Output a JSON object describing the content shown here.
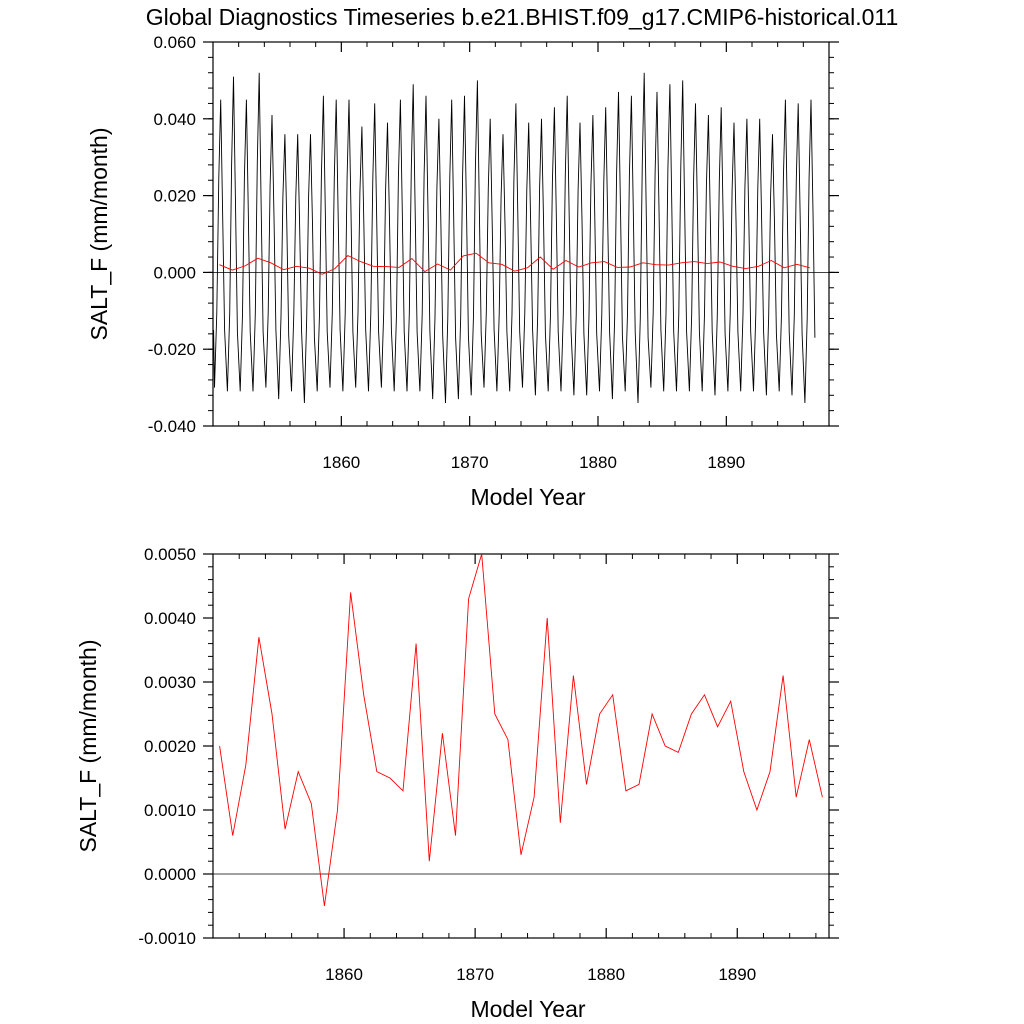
{
  "title": "Global Diagnostics Timeseries b.e21.BHIST.f09_g17.CMIP6-historical.011",
  "colors": {
    "monthly": "#000000",
    "annual": "#ff0000",
    "zero_line": "#000000"
  },
  "chart_data": [
    {
      "type": "line",
      "xlabel": "Model Year",
      "ylabel": "SALT_F (mm/month)",
      "xlim": [
        1850,
        1898
      ],
      "ylim": [
        -0.04,
        0.06
      ],
      "x_ticks": [
        1860,
        1870,
        1880,
        1890
      ],
      "x_tick_labels": [
        "1860",
        "1870",
        "1880",
        "1890"
      ],
      "y_ticks": [
        -0.04,
        -0.02,
        0,
        0.02,
        0.04,
        0.06
      ],
      "y_tick_labels": [
        "-0.040",
        "-0.020",
        "0.000",
        "0.020",
        "0.040",
        "0.060"
      ],
      "grid": false,
      "zero_line": true,
      "series": [
        {
          "color": "#000000",
          "style": "monthly seasonal oscillation",
          "year_start": 1850,
          "peaks": [
            0.045,
            0.051,
            0.045,
            0.052,
            0.041,
            0.036,
            0.036,
            0.036,
            0.046,
            0.045,
            0.045,
            0.038,
            0.044,
            0.039,
            0.045,
            0.049,
            0.046,
            0.04,
            0.045,
            0.046,
            0.05,
            0.04,
            0.036,
            0.044,
            0.039,
            0.04,
            0.043,
            0.046,
            0.039,
            0.041,
            0.043,
            0.047,
            0.046,
            0.052,
            0.047,
            0.049,
            0.05,
            0.044,
            0.041,
            0.043,
            0.039,
            0.04,
            0.04,
            0.036,
            0.045,
            0.044,
            0.045
          ],
          "troughs": [
            -0.03,
            -0.031,
            -0.031,
            -0.031,
            -0.03,
            -0.033,
            -0.031,
            -0.034,
            -0.031,
            -0.03,
            -0.031,
            -0.03,
            -0.031,
            -0.03,
            -0.031,
            -0.031,
            -0.031,
            -0.033,
            -0.034,
            -0.033,
            -0.032,
            -0.03,
            -0.031,
            -0.031,
            -0.03,
            -0.032,
            -0.031,
            -0.031,
            -0.032,
            -0.032,
            -0.031,
            -0.033,
            -0.031,
            -0.034,
            -0.03,
            -0.031,
            -0.031,
            -0.031,
            -0.031,
            -0.032,
            -0.031,
            -0.031,
            -0.031,
            -0.032,
            -0.031,
            -0.032,
            -0.034
          ]
        },
        {
          "color": "#ff0000",
          "style": "annual mean",
          "x": [
            1850.5,
            1851.5,
            1852.5,
            1853.5,
            1854.5,
            1855.5,
            1856.5,
            1857.5,
            1858.5,
            1859.5,
            1860.5,
            1861.5,
            1862.5,
            1863.5,
            1864.5,
            1865.5,
            1866.5,
            1867.5,
            1868.5,
            1869.5,
            1870.5,
            1871.5,
            1872.5,
            1873.5,
            1874.5,
            1875.5,
            1876.5,
            1877.5,
            1878.5,
            1879.5,
            1880.5,
            1881.5,
            1882.5,
            1883.5,
            1884.5,
            1885.5,
            1886.5,
            1887.5,
            1888.5,
            1889.5,
            1890.5,
            1891.5,
            1892.5,
            1893.5,
            1894.5,
            1895.5,
            1896.5
          ],
          "values": [
            0.002,
            0.0006,
            0.0017,
            0.0037,
            0.0025,
            0.0007,
            0.0016,
            0.0011,
            -0.0005,
            0.001,
            0.0044,
            0.0028,
            0.0016,
            0.0015,
            0.0013,
            0.0036,
            0.0002,
            0.0022,
            0.0006,
            0.0043,
            0.005,
            0.0025,
            0.0021,
            0.0003,
            0.0012,
            0.004,
            0.0008,
            0.0031,
            0.0014,
            0.0025,
            0.0028,
            0.0013,
            0.0014,
            0.0025,
            0.002,
            0.0019,
            0.0025,
            0.0028,
            0.0023,
            0.0027,
            0.0016,
            0.001,
            0.0016,
            0.0031,
            0.0012,
            0.0021,
            0.0012
          ]
        }
      ]
    },
    {
      "type": "line",
      "xlabel": "Model Year",
      "ylabel": "SALT_F (mm/month)",
      "xlim": [
        1850,
        1897
      ],
      "ylim": [
        -0.001,
        0.005
      ],
      "x_ticks": [
        1860,
        1870,
        1880,
        1890
      ],
      "x_tick_labels": [
        "1860",
        "1870",
        "1880",
        "1890"
      ],
      "y_ticks": [
        -0.001,
        0,
        0.001,
        0.002,
        0.003,
        0.004,
        0.005
      ],
      "y_tick_labels": [
        "-0.0010",
        "0.0000",
        "0.0010",
        "0.0020",
        "0.0030",
        "0.0040",
        "0.0050"
      ],
      "grid": false,
      "zero_line": true,
      "series": [
        {
          "color": "#ff0000",
          "style": "annual mean",
          "x": [
            1850.5,
            1851.5,
            1852.5,
            1853.5,
            1854.5,
            1855.5,
            1856.5,
            1857.5,
            1858.5,
            1859.5,
            1860.5,
            1861.5,
            1862.5,
            1863.5,
            1864.5,
            1865.5,
            1866.5,
            1867.5,
            1868.5,
            1869.5,
            1870.5,
            1871.5,
            1872.5,
            1873.5,
            1874.5,
            1875.5,
            1876.5,
            1877.5,
            1878.5,
            1879.5,
            1880.5,
            1881.5,
            1882.5,
            1883.5,
            1884.5,
            1885.5,
            1886.5,
            1887.5,
            1888.5,
            1889.5,
            1890.5,
            1891.5,
            1892.5,
            1893.5,
            1894.5,
            1895.5,
            1896.5
          ],
          "values": [
            0.002,
            0.0006,
            0.0017,
            0.0037,
            0.0025,
            0.0007,
            0.0016,
            0.0011,
            -0.0005,
            0.001,
            0.0044,
            0.0028,
            0.0016,
            0.0015,
            0.0013,
            0.0036,
            0.0002,
            0.0022,
            0.0006,
            0.0043,
            0.005,
            0.0025,
            0.0021,
            0.0003,
            0.0012,
            0.004,
            0.0008,
            0.0031,
            0.0014,
            0.0025,
            0.0028,
            0.0013,
            0.0014,
            0.0025,
            0.002,
            0.0019,
            0.0025,
            0.0028,
            0.0023,
            0.0027,
            0.0016,
            0.001,
            0.0016,
            0.0031,
            0.0012,
            0.0021,
            0.0012
          ]
        }
      ]
    }
  ]
}
